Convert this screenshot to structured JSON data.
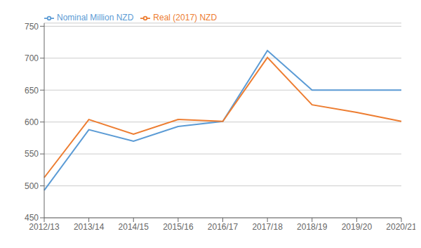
{
  "chart_data": {
    "type": "line",
    "categories": [
      "2012/13",
      "2013/14",
      "2014/15",
      "2015/16",
      "2016/17",
      "2017/18",
      "2018/19",
      "2019/20",
      "2020/21"
    ],
    "series": [
      {
        "name": "Nominal Million NZD",
        "color": "#5B9BD5",
        "values": [
          493,
          588,
          570,
          593,
          601,
          712,
          650,
          650,
          650
        ]
      },
      {
        "name": "Real (2017) NZD",
        "color": "#ED7D31",
        "values": [
          513,
          604,
          581,
          604,
          601,
          701,
          627,
          615,
          601
        ]
      }
    ],
    "ylim": [
      450,
      755
    ],
    "yticks": [
      450,
      500,
      550,
      600,
      650,
      700,
      750
    ],
    "grid": true,
    "legend": "upper left"
  }
}
